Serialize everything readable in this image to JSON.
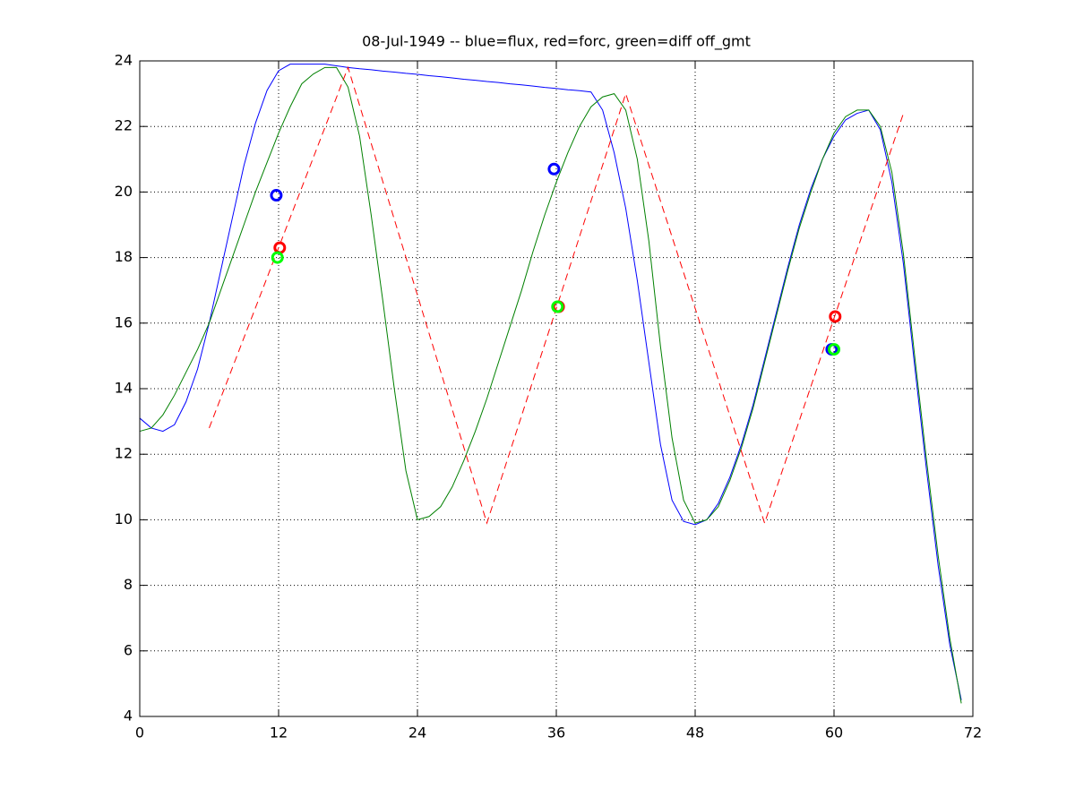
{
  "chart_data": {
    "type": "line",
    "title": "08-Jul-1949 -- blue=flux, red=forc, green=diff off_gmt",
    "x": [
      0,
      1,
      2,
      3,
      4,
      5,
      6,
      7,
      8,
      9,
      10,
      11,
      12,
      13,
      14,
      15,
      16,
      17,
      18,
      19,
      20,
      21,
      22,
      23,
      24,
      25,
      26,
      27,
      28,
      29,
      30,
      31,
      32,
      33,
      34,
      35,
      36,
      37,
      38,
      39,
      40,
      41,
      42,
      43,
      44,
      45,
      46,
      47,
      48,
      49,
      50,
      51,
      52,
      53,
      54,
      55,
      56,
      57,
      58,
      59,
      60,
      61,
      62,
      63,
      64,
      65,
      66,
      67,
      68,
      69,
      70,
      71
    ],
    "xlim": [
      0,
      72
    ],
    "ylim": [
      4,
      24
    ],
    "xticks": [
      0,
      12,
      24,
      36,
      48,
      60,
      72
    ],
    "yticks": [
      4,
      6,
      8,
      10,
      12,
      14,
      16,
      18,
      20,
      22,
      24
    ],
    "grid": true,
    "series": [
      {
        "color": "#0000ff",
        "values": [
          13.1,
          12.8,
          12.7,
          12.9,
          13.6,
          14.6,
          16.0,
          17.6,
          19.2,
          20.8,
          22.1,
          23.1,
          23.7,
          23.9,
          23.9,
          23.9,
          23.9,
          23.85,
          23.8,
          23.76,
          23.73,
          23.69,
          23.66,
          23.62,
          23.59,
          23.55,
          23.52,
          23.48,
          23.44,
          23.41,
          23.37,
          23.34,
          23.3,
          23.27,
          23.23,
          23.19,
          23.16,
          23.12,
          23.09,
          23.05,
          22.5,
          21.2,
          19.5,
          17.3,
          14.8,
          12.3,
          10.6,
          9.95,
          9.85,
          10.0,
          10.5,
          11.3,
          12.3,
          13.5,
          14.9,
          16.3,
          17.7,
          19.0,
          20.1,
          21.0,
          21.7,
          22.2,
          22.4,
          22.5,
          21.9,
          20.3,
          17.8,
          14.6,
          11.5,
          8.6,
          6.2,
          4.5
        ]
      },
      {
        "color": "#008000",
        "values": [
          12.7,
          12.8,
          13.2,
          13.8,
          14.5,
          15.2,
          16.0,
          17.0,
          18.0,
          19.0,
          20.0,
          20.9,
          21.8,
          22.6,
          23.3,
          23.6,
          23.8,
          23.8,
          23.2,
          21.7,
          19.3,
          16.7,
          14.0,
          11.5,
          10.0,
          10.1,
          10.4,
          11.0,
          11.8,
          12.7,
          13.7,
          14.8,
          15.9,
          17.0,
          18.2,
          19.3,
          20.3,
          21.2,
          22.0,
          22.6,
          22.9,
          23.0,
          22.5,
          21.0,
          18.5,
          15.3,
          12.5,
          10.6,
          9.9,
          10.0,
          10.4,
          11.2,
          12.2,
          13.4,
          14.8,
          16.2,
          17.6,
          18.9,
          20.0,
          21.0,
          21.8,
          22.3,
          22.5,
          22.5,
          22.0,
          20.6,
          18.1,
          14.9,
          11.8,
          8.9,
          6.4,
          4.4
        ]
      },
      {
        "color": "#ff0000",
        "linestyle": "dashed",
        "x": [
          6,
          18,
          30,
          42,
          54,
          66
        ],
        "values": [
          12.8,
          23.8,
          9.9,
          23.0,
          9.9,
          22.4
        ]
      },
      {
        "color": "#0000ff",
        "marker": "circle",
        "x": [
          11.8,
          35.8,
          59.8
        ],
        "values": [
          19.9,
          20.7,
          15.2
        ]
      },
      {
        "color": "#ff0000",
        "marker": "circle",
        "x": [
          12.1,
          36.2,
          60.1
        ],
        "values": [
          18.3,
          16.5,
          16.2
        ]
      },
      {
        "color": "#00ff00",
        "marker": "circle",
        "x": [
          11.9,
          36.1,
          60.0
        ],
        "values": [
          18.0,
          16.5,
          15.2
        ]
      }
    ]
  }
}
